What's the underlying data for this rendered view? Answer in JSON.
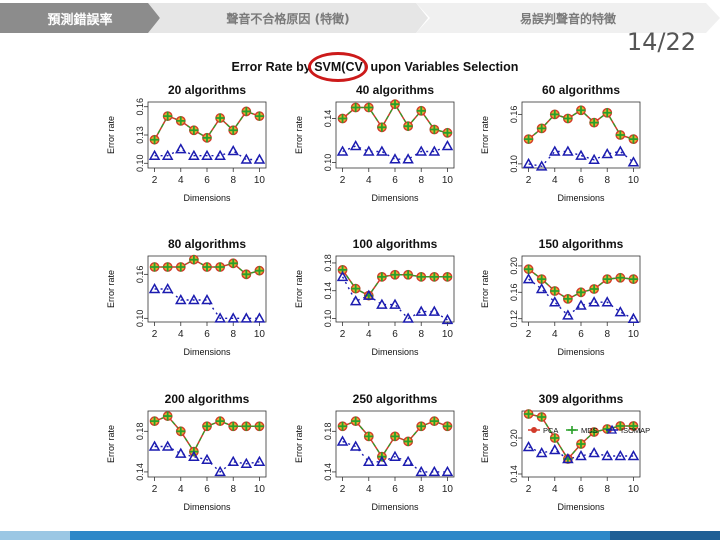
{
  "tabs": [
    {
      "label": "預測錯誤率"
    },
    {
      "label": "聲音不合格原因 (特徵)"
    },
    {
      "label": "易誤判聲音的特徵"
    }
  ],
  "page_number": "14/22",
  "figure_title": "Error Rate by SVM(CV) upon Variables Selection",
  "colors": {
    "pca": "#d23a2a",
    "mds": "#2aa02a",
    "isomap": "#1c1cb0",
    "highlight": "#cc1a1a"
  },
  "chart_data": [
    {
      "type": "scatter",
      "title": "20  algorithms",
      "xlabel": "Dimensions",
      "ylabel": "Error rate",
      "xlim": [
        1.5,
        10.5
      ],
      "ylim": [
        0.095,
        0.165
      ],
      "x": [
        2,
        3,
        4,
        5,
        6,
        7,
        8,
        9,
        10
      ],
      "yticks": [
        0.1,
        0.13,
        0.16
      ],
      "ytick_labels": [
        "0.10",
        "0.13",
        "0.16"
      ],
      "xticks": [
        2,
        4,
        6,
        8,
        10
      ],
      "series": [
        {
          "values": [
            0.125,
            0.15,
            0.145,
            0.135,
            0.127,
            0.148,
            0.135,
            0.155,
            0.15
          ]
        },
        {
          "values": [
            0.108,
            0.108,
            0.115,
            0.108,
            0.108,
            0.108,
            0.113,
            0.104,
            0.104
          ]
        }
      ]
    },
    {
      "type": "scatter",
      "title": "40  algorithms",
      "xlabel": "Dimensions",
      "ylabel": "Error rate",
      "xlim": [
        1.5,
        10.5
      ],
      "ylim": [
        0.095,
        0.155
      ],
      "x": [
        2,
        3,
        4,
        5,
        6,
        7,
        8,
        9,
        10
      ],
      "yticks": [
        0.1,
        0.14
      ],
      "ytick_labels": [
        "0.10",
        "0.14"
      ],
      "xticks": [
        2,
        4,
        6,
        8,
        10
      ],
      "series": [
        {
          "values": [
            0.14,
            0.15,
            0.15,
            0.132,
            0.153,
            0.133,
            0.147,
            0.13,
            0.127
          ]
        },
        {
          "values": [
            0.11,
            0.115,
            0.11,
            0.11,
            0.103,
            0.103,
            0.11,
            0.11,
            0.115
          ]
        }
      ]
    },
    {
      "type": "scatter",
      "title": "60  algorithms",
      "xlabel": "Dimensions",
      "ylabel": "Error rate",
      "xlim": [
        1.5,
        10.5
      ],
      "ylim": [
        0.095,
        0.175
      ],
      "x": [
        2,
        3,
        4,
        5,
        6,
        7,
        8,
        9,
        10
      ],
      "yticks": [
        0.1,
        0.16
      ],
      "ytick_labels": [
        "0.10",
        "0.16"
      ],
      "xticks": [
        2,
        4,
        6,
        8,
        10
      ],
      "series": [
        {
          "values": [
            0.13,
            0.143,
            0.16,
            0.155,
            0.165,
            0.15,
            0.162,
            0.135,
            0.13
          ]
        },
        {
          "values": [
            0.1,
            0.097,
            0.115,
            0.115,
            0.11,
            0.105,
            0.112,
            0.115,
            0.102
          ]
        }
      ]
    },
    {
      "type": "scatter",
      "title": "80  algorithms",
      "xlabel": "Dimensions",
      "ylabel": "Error rate",
      "xlim": [
        1.5,
        10.5
      ],
      "ylim": [
        0.095,
        0.185
      ],
      "x": [
        2,
        3,
        4,
        5,
        6,
        7,
        8,
        9,
        10
      ],
      "yticks": [
        0.1,
        0.16
      ],
      "ytick_labels": [
        "0.10",
        "0.16"
      ],
      "xticks": [
        2,
        4,
        6,
        8,
        10
      ],
      "series": [
        {
          "values": [
            0.17,
            0.17,
            0.17,
            0.18,
            0.17,
            0.17,
            0.175,
            0.16,
            0.165
          ]
        },
        {
          "values": [
            0.14,
            0.14,
            0.125,
            0.125,
            0.125,
            0.1,
            0.1,
            0.1,
            0.1
          ]
        }
      ]
    },
    {
      "type": "scatter",
      "title": "100  algorithms",
      "xlabel": "Dimensions",
      "ylabel": "Error rate",
      "xlim": [
        1.5,
        10.5
      ],
      "ylim": [
        0.095,
        0.19
      ],
      "x": [
        2,
        3,
        4,
        5,
        6,
        7,
        8,
        9,
        10
      ],
      "yticks": [
        0.1,
        0.14,
        0.18
      ],
      "ytick_labels": [
        "0.10",
        "0.14",
        "0.18"
      ],
      "xticks": [
        2,
        4,
        6,
        8,
        10
      ],
      "series": [
        {
          "values": [
            0.17,
            0.143,
            0.133,
            0.16,
            0.163,
            0.163,
            0.16,
            0.16,
            0.16
          ]
        },
        {
          "values": [
            0.16,
            0.125,
            0.133,
            0.12,
            0.12,
            0.1,
            0.11,
            0.11,
            0.098
          ]
        }
      ]
    },
    {
      "type": "scatter",
      "title": "150  algorithms",
      "xlabel": "Dimensions",
      "ylabel": "Error rate",
      "xlim": [
        1.5,
        10.5
      ],
      "ylim": [
        0.115,
        0.215
      ],
      "x": [
        2,
        3,
        4,
        5,
        6,
        7,
        8,
        9,
        10
      ],
      "yticks": [
        0.12,
        0.16,
        0.2
      ],
      "ytick_labels": [
        "0.12",
        "0.16",
        "0.20"
      ],
      "xticks": [
        2,
        4,
        6,
        8,
        10
      ],
      "series": [
        {
          "values": [
            0.195,
            0.18,
            0.162,
            0.15,
            0.16,
            0.165,
            0.18,
            0.182,
            0.18
          ]
        },
        {
          "values": [
            0.18,
            0.165,
            0.145,
            0.125,
            0.14,
            0.145,
            0.145,
            0.13,
            0.12
          ]
        }
      ]
    },
    {
      "type": "scatter",
      "title": "200  algorithms",
      "xlabel": "Dimensions",
      "ylabel": "Error rate",
      "xlim": [
        1.5,
        10.5
      ],
      "ylim": [
        0.135,
        0.2
      ],
      "x": [
        2,
        3,
        4,
        5,
        6,
        7,
        8,
        9,
        10
      ],
      "yticks": [
        0.14,
        0.18
      ],
      "ytick_labels": [
        "0.14",
        "0.18"
      ],
      "xticks": [
        2,
        4,
        6,
        8,
        10
      ],
      "series": [
        {
          "values": [
            0.19,
            0.195,
            0.18,
            0.16,
            0.185,
            0.19,
            0.185,
            0.185,
            0.185
          ]
        },
        {
          "values": [
            0.165,
            0.165,
            0.158,
            0.155,
            0.152,
            0.14,
            0.15,
            0.148,
            0.15
          ]
        }
      ]
    },
    {
      "type": "scatter",
      "title": "250  algorithms",
      "xlabel": "Dimensions",
      "ylabel": "Error rate",
      "xlim": [
        1.5,
        10.5
      ],
      "ylim": [
        0.135,
        0.2
      ],
      "x": [
        2,
        3,
        4,
        5,
        6,
        7,
        8,
        9,
        10
      ],
      "yticks": [
        0.14,
        0.18
      ],
      "ytick_labels": [
        "0.14",
        "0.18"
      ],
      "xticks": [
        2,
        4,
        6,
        8,
        10
      ],
      "series": [
        {
          "values": [
            0.185,
            0.19,
            0.175,
            0.155,
            0.175,
            0.17,
            0.185,
            0.19,
            0.185
          ]
        },
        {
          "values": [
            0.17,
            0.165,
            0.15,
            0.15,
            0.155,
            0.15,
            0.14,
            0.14,
            0.14
          ]
        }
      ]
    },
    {
      "type": "scatter",
      "title": "309  algorithms",
      "xlabel": "Dimensions",
      "ylabel": "Error rate",
      "xlim": [
        1.5,
        10.5
      ],
      "ylim": [
        0.135,
        0.245
      ],
      "x": [
        2,
        3,
        4,
        5,
        6,
        7,
        8,
        9,
        10
      ],
      "yticks": [
        0.14,
        0.2
      ],
      "ytick_labels": [
        "0.14",
        "0.20"
      ],
      "xticks": [
        2,
        4,
        6,
        8,
        10
      ],
      "legend": [
        "PCA",
        "MDS",
        "ISOMAP"
      ],
      "legend_position": "top",
      "series": [
        {
          "values": [
            0.24,
            0.235,
            0.2,
            0.165,
            0.19,
            0.21,
            0.215,
            0.22,
            0.22
          ]
        },
        {
          "values": [
            0.185,
            0.175,
            0.18,
            0.165,
            0.17,
            0.175,
            0.17,
            0.17,
            0.17
          ]
        }
      ]
    }
  ]
}
